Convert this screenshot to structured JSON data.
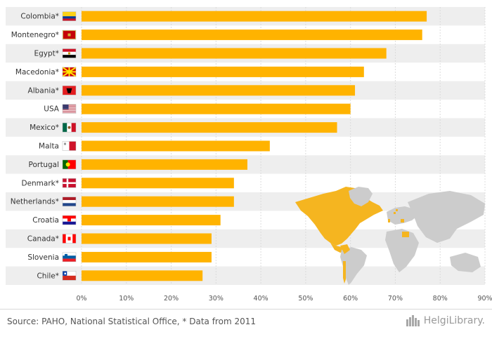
{
  "chart_data": {
    "type": "bar",
    "orientation": "horizontal",
    "categories": [
      "Colombia*",
      "Montenegro*",
      "Egypt*",
      "Macedonia*",
      "Albania*",
      "USA",
      "Mexico*",
      "Malta",
      "Portugal",
      "Denmark*",
      "Netherlands*",
      "Croatia",
      "Canada*",
      "Slovenia",
      "Chile*"
    ],
    "values": [
      77,
      76,
      68,
      63,
      61,
      60,
      57,
      42,
      37,
      34,
      34,
      31,
      29,
      29,
      27
    ],
    "value_unit": "%",
    "xlim": [
      0,
      90
    ],
    "xticks": [
      "0%",
      "10%",
      "20%",
      "30%",
      "40%",
      "50%",
      "60%",
      "70%",
      "80%",
      "90%"
    ],
    "bar_color": "#FFB300",
    "row_band_color": "#EEEEEE",
    "grid": true,
    "flags": [
      "colombia",
      "montenegro",
      "egypt",
      "macedonia",
      "albania",
      "usa",
      "mexico",
      "malta",
      "portugal",
      "denmark",
      "netherlands",
      "croatia",
      "canada",
      "slovenia",
      "chile"
    ],
    "highlight_map_color": "#F5B520",
    "map_base_color": "#CCCCCC"
  },
  "footer": {
    "source": "Source: PAHO, National Statistical Office, * Data from 2011",
    "brand": "HelgiLibrary."
  }
}
